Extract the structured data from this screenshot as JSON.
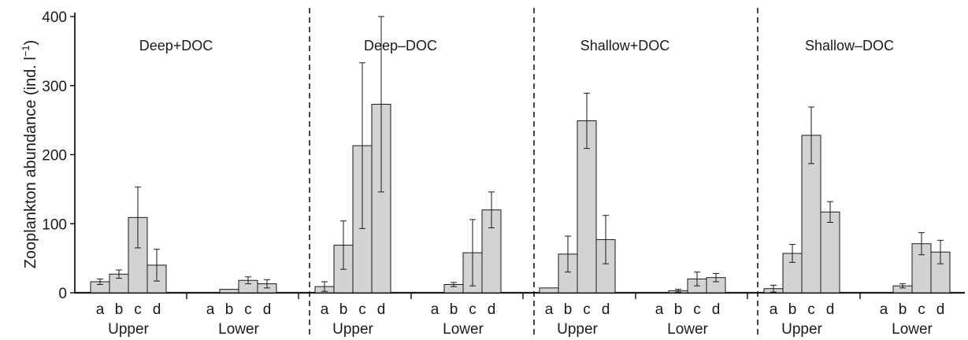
{
  "chart_data": {
    "type": "bar",
    "ylabel": "Zooplankton abundance (ind. l",
    "ylabel_sup": "−1",
    "ylabel_close": ")",
    "ylim": [
      0,
      400
    ],
    "yticks": [
      "0",
      "100",
      "200",
      "300",
      "400"
    ],
    "bar_color": "#d3d3d3",
    "groups": [
      "Upper",
      "Lower"
    ],
    "categories": [
      "a",
      "b",
      "c",
      "d"
    ],
    "panels": [
      {
        "title": "Deep+DOC",
        "Upper": {
          "values": [
            16,
            27,
            109,
            40
          ],
          "errors": [
            4,
            6,
            44,
            23
          ]
        },
        "Lower": {
          "values": [
            0,
            5,
            18,
            13
          ],
          "errors": [
            0,
            0,
            5,
            6
          ]
        }
      },
      {
        "title": "Deep–DOC",
        "Upper": {
          "values": [
            9,
            69,
            213,
            273
          ],
          "errors": [
            7,
            35,
            120,
            127
          ]
        },
        "Lower": {
          "values": [
            0,
            12,
            58,
            120
          ],
          "errors": [
            0,
            3,
            48,
            26
          ]
        }
      },
      {
        "title": "Shallow+DOC",
        "Upper": {
          "values": [
            7,
            56,
            249,
            77
          ],
          "errors": [
            0,
            26,
            40,
            35
          ]
        },
        "Lower": {
          "values": [
            0,
            3,
            20,
            22
          ],
          "errors": [
            0,
            2,
            10,
            6
          ]
        }
      },
      {
        "title": "Shallow–DOC",
        "Upper": {
          "values": [
            6,
            57,
            228,
            117
          ],
          "errors": [
            5,
            13,
            41,
            15
          ]
        },
        "Lower": {
          "values": [
            0,
            10,
            71,
            59
          ],
          "errors": [
            0,
            3,
            16,
            17
          ]
        }
      }
    ]
  }
}
